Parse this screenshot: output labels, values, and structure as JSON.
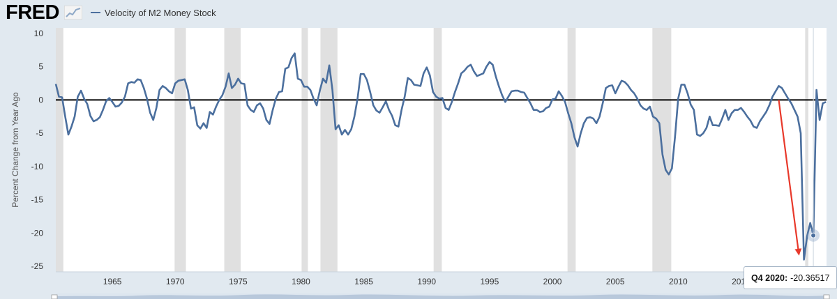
{
  "logo": {
    "text": "FRED"
  },
  "colors": {
    "series": "#4b6f9e",
    "recession": "#e0e0e0",
    "background": "#e1e9f0",
    "arrow": "#e8392b"
  },
  "tooltip": {
    "label": "Q4 2020:",
    "value": "-20.36517"
  },
  "chart_data": {
    "type": "line",
    "title": "",
    "xlabel": "",
    "ylabel": "Percent Change from Year Ago",
    "ylim": [
      -25,
      10
    ],
    "xlim": [
      1960.5,
      2021.8
    ],
    "yticks": [
      10,
      5,
      0,
      -5,
      -10,
      -15,
      -20,
      -25
    ],
    "xticks": [
      1965,
      1970,
      1975,
      1980,
      1985,
      1990,
      1995,
      2000,
      2005,
      2010,
      2015
    ],
    "grid": false,
    "legend": "top-left",
    "series": [
      {
        "name": "Velocity of M2 Money Stock",
        "points": [
          [
            1960.5,
            2.4
          ],
          [
            1960.75,
            0.5
          ],
          [
            1961.0,
            0.4
          ],
          [
            1961.25,
            -2.5
          ],
          [
            1961.5,
            -5.2
          ],
          [
            1961.75,
            -4.0
          ],
          [
            1962.0,
            -2.5
          ],
          [
            1962.25,
            0.5
          ],
          [
            1962.5,
            1.4
          ],
          [
            1962.75,
            0.2
          ],
          [
            1963.0,
            -0.6
          ],
          [
            1963.25,
            -2.4
          ],
          [
            1963.5,
            -3.2
          ],
          [
            1963.75,
            -3.0
          ],
          [
            1964.0,
            -2.6
          ],
          [
            1964.25,
            -1.5
          ],
          [
            1964.5,
            -0.2
          ],
          [
            1964.75,
            0.3
          ],
          [
            1965.0,
            -0.3
          ],
          [
            1965.25,
            -1.0
          ],
          [
            1965.5,
            -0.9
          ],
          [
            1965.75,
            -0.4
          ],
          [
            1966.0,
            0.5
          ],
          [
            1966.25,
            2.5
          ],
          [
            1966.5,
            2.7
          ],
          [
            1966.75,
            2.6
          ],
          [
            1967.0,
            3.1
          ],
          [
            1967.25,
            3.0
          ],
          [
            1967.5,
            1.8
          ],
          [
            1967.75,
            0.2
          ],
          [
            1968.0,
            -1.9
          ],
          [
            1968.25,
            -3.0
          ],
          [
            1968.5,
            -1.2
          ],
          [
            1968.75,
            1.5
          ],
          [
            1969.0,
            2.1
          ],
          [
            1969.25,
            1.8
          ],
          [
            1969.5,
            1.3
          ],
          [
            1969.75,
            1.0
          ],
          [
            1970.0,
            2.5
          ],
          [
            1970.25,
            2.9
          ],
          [
            1970.5,
            3.0
          ],
          [
            1970.75,
            3.1
          ],
          [
            1971.0,
            1.5
          ],
          [
            1971.25,
            -1.3
          ],
          [
            1971.5,
            -1.1
          ],
          [
            1971.75,
            -3.8
          ],
          [
            1972.0,
            -4.3
          ],
          [
            1972.25,
            -3.5
          ],
          [
            1972.5,
            -4.2
          ],
          [
            1972.75,
            -1.8
          ],
          [
            1973.0,
            -2.2
          ],
          [
            1973.25,
            -1.0
          ],
          [
            1973.5,
            0.0
          ],
          [
            1973.75,
            0.7
          ],
          [
            1974.0,
            2.0
          ],
          [
            1974.25,
            4.0
          ],
          [
            1974.5,
            1.8
          ],
          [
            1974.75,
            2.3
          ],
          [
            1975.0,
            3.2
          ],
          [
            1975.25,
            2.5
          ],
          [
            1975.5,
            2.4
          ],
          [
            1975.75,
            -0.8
          ],
          [
            1976.0,
            -1.5
          ],
          [
            1976.25,
            -1.8
          ],
          [
            1976.5,
            -0.8
          ],
          [
            1976.75,
            -0.5
          ],
          [
            1977.0,
            -1.3
          ],
          [
            1977.25,
            -3.0
          ],
          [
            1977.5,
            -3.6
          ],
          [
            1977.75,
            -1.5
          ],
          [
            1978.0,
            0.2
          ],
          [
            1978.25,
            1.2
          ],
          [
            1978.5,
            1.3
          ],
          [
            1978.75,
            4.7
          ],
          [
            1979.0,
            4.9
          ],
          [
            1979.25,
            6.3
          ],
          [
            1979.5,
            7.0
          ],
          [
            1979.75,
            3.2
          ],
          [
            1980.0,
            3.0
          ],
          [
            1980.25,
            2.0
          ],
          [
            1980.5,
            2.0
          ],
          [
            1980.75,
            1.5
          ],
          [
            1981.0,
            0.2
          ],
          [
            1981.25,
            -0.8
          ],
          [
            1981.5,
            1.4
          ],
          [
            1981.75,
            3.2
          ],
          [
            1982.0,
            2.6
          ],
          [
            1982.25,
            5.2
          ],
          [
            1982.5,
            1.5
          ],
          [
            1982.75,
            -4.4
          ],
          [
            1983.0,
            -3.8
          ],
          [
            1983.25,
            -5.2
          ],
          [
            1983.5,
            -4.5
          ],
          [
            1983.75,
            -5.2
          ],
          [
            1984.0,
            -4.4
          ],
          [
            1984.25,
            -2.5
          ],
          [
            1984.5,
            0.2
          ],
          [
            1984.75,
            3.9
          ],
          [
            1985.0,
            3.9
          ],
          [
            1985.25,
            3.0
          ],
          [
            1985.5,
            1.2
          ],
          [
            1985.75,
            -0.8
          ],
          [
            1986.0,
            -1.6
          ],
          [
            1986.25,
            -1.9
          ],
          [
            1986.5,
            -1.1
          ],
          [
            1986.75,
            -0.2
          ],
          [
            1987.0,
            -1.5
          ],
          [
            1987.25,
            -2.4
          ],
          [
            1987.5,
            -3.8
          ],
          [
            1987.75,
            -4.0
          ],
          [
            1988.0,
            -1.5
          ],
          [
            1988.25,
            0.5
          ],
          [
            1988.5,
            3.3
          ],
          [
            1988.75,
            3.0
          ],
          [
            1989.0,
            2.3
          ],
          [
            1989.25,
            2.2
          ],
          [
            1989.5,
            2.1
          ],
          [
            1989.75,
            4.0
          ],
          [
            1990.0,
            4.9
          ],
          [
            1990.25,
            3.7
          ],
          [
            1990.5,
            1.2
          ],
          [
            1990.75,
            0.5
          ],
          [
            1991.0,
            0.2
          ],
          [
            1991.25,
            0.3
          ],
          [
            1991.5,
            -1.2
          ],
          [
            1991.75,
            -1.5
          ],
          [
            1992.0,
            -0.3
          ],
          [
            1992.25,
            1.2
          ],
          [
            1992.5,
            2.5
          ],
          [
            1992.75,
            4.0
          ],
          [
            1993.0,
            4.4
          ],
          [
            1993.25,
            5.0
          ],
          [
            1993.5,
            5.3
          ],
          [
            1993.75,
            4.3
          ],
          [
            1994.0,
            3.6
          ],
          [
            1994.25,
            3.8
          ],
          [
            1994.5,
            4.0
          ],
          [
            1994.75,
            5.0
          ],
          [
            1995.0,
            5.7
          ],
          [
            1995.25,
            5.3
          ],
          [
            1995.5,
            3.5
          ],
          [
            1995.75,
            2.0
          ],
          [
            1996.0,
            0.7
          ],
          [
            1996.25,
            -0.3
          ],
          [
            1996.5,
            0.5
          ],
          [
            1996.75,
            1.3
          ],
          [
            1997.0,
            1.4
          ],
          [
            1997.25,
            1.4
          ],
          [
            1997.5,
            1.2
          ],
          [
            1997.75,
            1.1
          ],
          [
            1998.0,
            0.3
          ],
          [
            1998.25,
            -0.5
          ],
          [
            1998.5,
            -1.5
          ],
          [
            1998.75,
            -1.5
          ],
          [
            1999.0,
            -1.8
          ],
          [
            1999.25,
            -1.7
          ],
          [
            1999.5,
            -1.2
          ],
          [
            1999.75,
            -1.0
          ],
          [
            2000.0,
            0.1
          ],
          [
            2000.25,
            0.2
          ],
          [
            2000.5,
            1.3
          ],
          [
            2000.75,
            0.6
          ],
          [
            2001.0,
            -0.3
          ],
          [
            2001.25,
            -2.0
          ],
          [
            2001.5,
            -3.5
          ],
          [
            2001.75,
            -5.6
          ],
          [
            2002.0,
            -7.0
          ],
          [
            2002.25,
            -5.0
          ],
          [
            2002.5,
            -3.5
          ],
          [
            2002.75,
            -2.7
          ],
          [
            2003.0,
            -2.6
          ],
          [
            2003.25,
            -2.8
          ],
          [
            2003.5,
            -3.5
          ],
          [
            2003.75,
            -2.5
          ],
          [
            2004.0,
            -0.5
          ],
          [
            2004.25,
            1.8
          ],
          [
            2004.5,
            2.1
          ],
          [
            2004.75,
            2.2
          ],
          [
            2005.0,
            1.0
          ],
          [
            2005.25,
            2.0
          ],
          [
            2005.5,
            2.9
          ],
          [
            2005.75,
            2.7
          ],
          [
            2006.0,
            2.2
          ],
          [
            2006.25,
            1.5
          ],
          [
            2006.5,
            1.0
          ],
          [
            2006.75,
            0.2
          ],
          [
            2007.0,
            -0.8
          ],
          [
            2007.25,
            -1.3
          ],
          [
            2007.5,
            -1.5
          ],
          [
            2007.75,
            -1.0
          ],
          [
            2008.0,
            -2.5
          ],
          [
            2008.25,
            -2.8
          ],
          [
            2008.5,
            -3.5
          ],
          [
            2008.75,
            -8.2
          ],
          [
            2009.0,
            -10.5
          ],
          [
            2009.25,
            -11.2
          ],
          [
            2009.5,
            -10.3
          ],
          [
            2009.75,
            -5.5
          ],
          [
            2010.0,
            0.2
          ],
          [
            2010.25,
            2.3
          ],
          [
            2010.5,
            2.3
          ],
          [
            2010.75,
            1.0
          ],
          [
            2011.0,
            -0.7
          ],
          [
            2011.25,
            -1.5
          ],
          [
            2011.5,
            -5.2
          ],
          [
            2011.75,
            -5.4
          ],
          [
            2012.0,
            -5.0
          ],
          [
            2012.25,
            -4.2
          ],
          [
            2012.5,
            -2.5
          ],
          [
            2012.75,
            -3.8
          ],
          [
            2013.0,
            -3.8
          ],
          [
            2013.25,
            -3.9
          ],
          [
            2013.5,
            -2.8
          ],
          [
            2013.75,
            -1.5
          ],
          [
            2014.0,
            -3.0
          ],
          [
            2014.25,
            -2.0
          ],
          [
            2014.5,
            -1.5
          ],
          [
            2014.75,
            -1.5
          ],
          [
            2015.0,
            -1.2
          ],
          [
            2015.25,
            -1.8
          ],
          [
            2015.5,
            -2.5
          ],
          [
            2015.75,
            -3.1
          ],
          [
            2016.0,
            -4.0
          ],
          [
            2016.25,
            -4.2
          ],
          [
            2016.5,
            -3.2
          ],
          [
            2016.75,
            -2.5
          ],
          [
            2017.0,
            -1.8
          ],
          [
            2017.25,
            -0.8
          ],
          [
            2017.5,
            0.5
          ],
          [
            2017.75,
            1.3
          ],
          [
            2018.0,
            2.1
          ],
          [
            2018.25,
            1.8
          ],
          [
            2018.5,
            1.0
          ],
          [
            2018.75,
            0.2
          ],
          [
            2019.0,
            -0.5
          ],
          [
            2019.25,
            -1.5
          ],
          [
            2019.5,
            -2.5
          ],
          [
            2019.75,
            -5.0
          ],
          [
            2020.0,
            -24.0
          ],
          [
            2020.25,
            -20.5
          ],
          [
            2020.5,
            -18.5
          ],
          [
            2020.75,
            -20.36517
          ],
          [
            2021.0,
            1.5
          ],
          [
            2021.25,
            -3.0
          ],
          [
            2021.5,
            -0.5
          ],
          [
            2021.75,
            -0.3
          ]
        ]
      }
    ],
    "recessions": [
      [
        1960.5,
        1961.1
      ],
      [
        1969.95,
        1970.85
      ],
      [
        1973.9,
        1975.2
      ],
      [
        1980.05,
        1980.55
      ],
      [
        1981.55,
        1982.9
      ],
      [
        1990.55,
        1991.2
      ],
      [
        2001.2,
        2001.85
      ],
      [
        2007.95,
        2009.45
      ],
      [
        2020.1,
        2020.35
      ]
    ],
    "annotations": [
      {
        "type": "arrow",
        "from": [
          2018.0,
          0.0
        ],
        "to": [
          2019.6,
          -23.2
        ]
      },
      {
        "type": "highlight-point",
        "x": 2020.75,
        "y": -20.36517
      }
    ]
  }
}
